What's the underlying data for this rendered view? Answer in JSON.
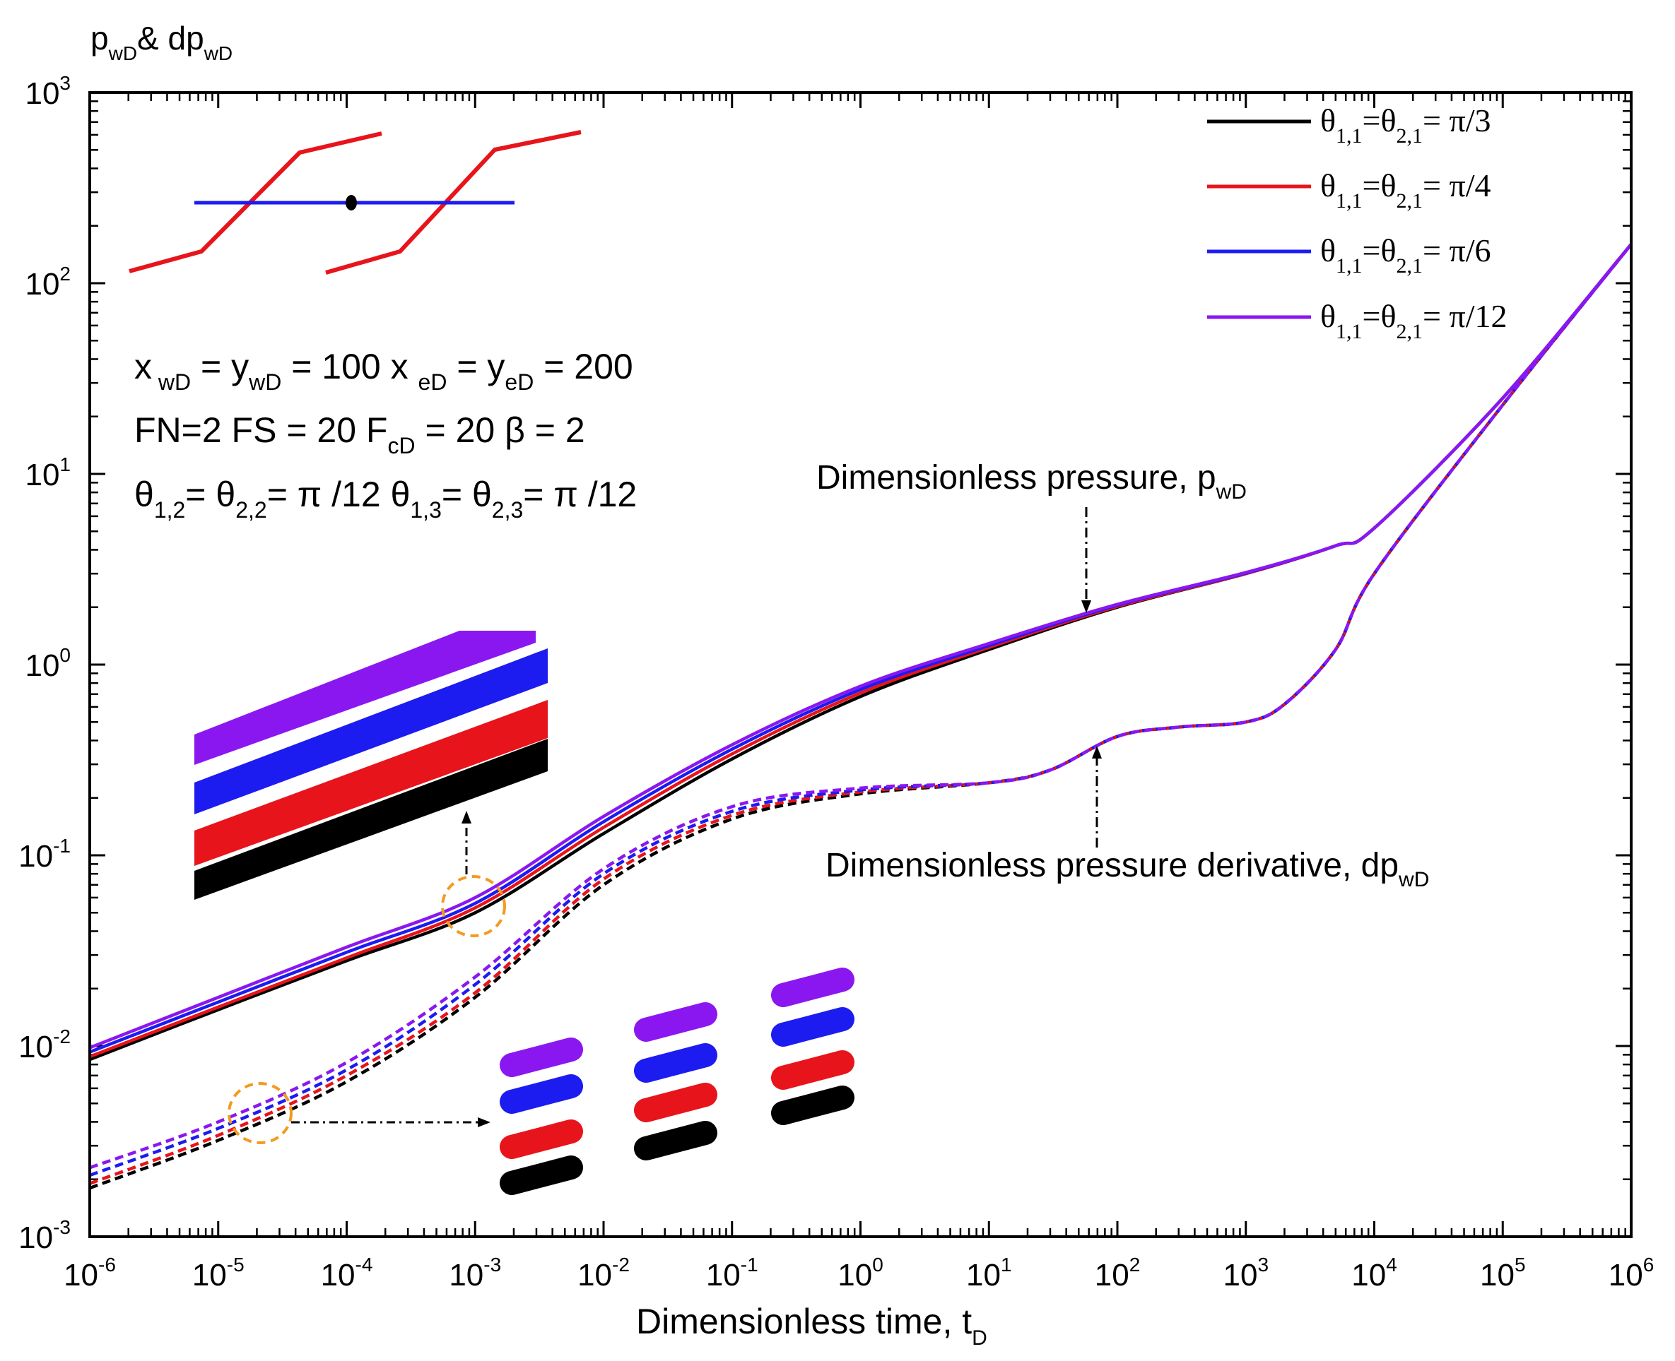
{
  "chart_data": {
    "type": "line",
    "xscale": "log",
    "yscale": "log",
    "xlim": [
      1e-06,
      1000000.0
    ],
    "ylim": [
      0.001,
      1000.0
    ],
    "y_title": {
      "base": "p",
      "sub": "wD",
      "mid": "& dp",
      "sub2": "wD"
    },
    "x_title": {
      "base": "Dimensionless time, t",
      "sub": "D"
    },
    "x_ticks": [
      {
        "value": 1e-06,
        "exp": "-6"
      },
      {
        "value": 1e-05,
        "exp": "-5"
      },
      {
        "value": 0.0001,
        "exp": "-4"
      },
      {
        "value": 0.001,
        "exp": "-3"
      },
      {
        "value": 0.01,
        "exp": "-2"
      },
      {
        "value": 0.1,
        "exp": "-1"
      },
      {
        "value": 1.0,
        "exp": "0"
      },
      {
        "value": 10.0,
        "exp": "1"
      },
      {
        "value": 100.0,
        "exp": "2"
      },
      {
        "value": 1000.0,
        "exp": "3"
      },
      {
        "value": 10000.0,
        "exp": "4"
      },
      {
        "value": 100000.0,
        "exp": "5"
      },
      {
        "value": 1000000.0,
        "exp": "6"
      }
    ],
    "y_ticks": [
      {
        "value": 0.001,
        "exp": "-3"
      },
      {
        "value": 0.01,
        "exp": "-2"
      },
      {
        "value": 0.1,
        "exp": "-1"
      },
      {
        "value": 1.0,
        "exp": "0"
      },
      {
        "value": 10.0,
        "exp": "1"
      },
      {
        "value": 100.0,
        "exp": "2"
      },
      {
        "value": 1000.0,
        "exp": "3"
      }
    ],
    "tick_base": "10",
    "legend_position": "top-right",
    "series": [
      {
        "name": "θ1,1=θ2,1= π/3",
        "legend": {
          "a": "θ",
          "s1": "1,1",
          "b": "=θ",
          "s2": "2,1",
          "c": "= π/3"
        },
        "color": "#000000",
        "pressure": [
          [
            1e-06,
            0.0085
          ],
          [
            1e-05,
            0.0155
          ],
          [
            0.0001,
            0.028
          ],
          [
            0.001,
            0.05
          ],
          [
            0.01,
            0.13
          ],
          [
            0.1,
            0.32
          ],
          [
            1,
            0.68
          ],
          [
            10,
            1.2
          ],
          [
            100,
            2.0
          ],
          [
            1000,
            3.0
          ],
          [
            5000,
            4.2
          ],
          [
            10000.0,
            5.2
          ],
          [
            100000.0,
            25
          ],
          [
            1000000.0,
            160
          ]
        ],
        "derivative": [
          [
            1e-06,
            0.0018
          ],
          [
            1e-05,
            0.0032
          ],
          [
            0.0001,
            0.0065
          ],
          [
            0.001,
            0.018
          ],
          [
            0.01,
            0.07
          ],
          [
            0.1,
            0.155
          ],
          [
            1,
            0.21
          ],
          [
            10,
            0.24
          ],
          [
            30,
            0.28
          ],
          [
            100,
            0.42
          ],
          [
            300,
            0.47
          ],
          [
            1000,
            0.5
          ],
          [
            2000,
            0.62
          ],
          [
            5000,
            1.2
          ],
          [
            10000.0,
            3.0
          ],
          [
            100000.0,
            23
          ],
          [
            1000000.0,
            160
          ]
        ]
      },
      {
        "name": "θ1,1=θ2,1= π/4",
        "legend": {
          "a": "θ",
          "s1": "1,1",
          "b": "=θ",
          "s2": "2,1",
          "c": "= π/4"
        },
        "color": "#e8141b",
        "pressure": [
          [
            1e-06,
            0.0088
          ],
          [
            1e-05,
            0.016
          ],
          [
            0.0001,
            0.029
          ],
          [
            0.001,
            0.053
          ],
          [
            0.01,
            0.14
          ],
          [
            0.1,
            0.34
          ],
          [
            1,
            0.71
          ],
          [
            10,
            1.23
          ],
          [
            100,
            2.02
          ],
          [
            1000,
            3.0
          ],
          [
            5000,
            4.2
          ],
          [
            10000.0,
            5.2
          ],
          [
            100000.0,
            25
          ],
          [
            1000000.0,
            160
          ]
        ],
        "derivative": [
          [
            1e-06,
            0.0019
          ],
          [
            1e-05,
            0.0034
          ],
          [
            0.0001,
            0.007
          ],
          [
            0.001,
            0.019
          ],
          [
            0.01,
            0.075
          ],
          [
            0.1,
            0.162
          ],
          [
            1,
            0.215
          ],
          [
            10,
            0.24
          ],
          [
            30,
            0.28
          ],
          [
            100,
            0.42
          ],
          [
            300,
            0.47
          ],
          [
            1000,
            0.5
          ],
          [
            2000,
            0.62
          ],
          [
            5000,
            1.2
          ],
          [
            10000.0,
            3.0
          ],
          [
            100000.0,
            23
          ],
          [
            1000000.0,
            160
          ]
        ]
      },
      {
        "name": "θ1,1=θ2,1= π/6",
        "legend": {
          "a": "θ",
          "s1": "1,1",
          "b": "=θ",
          "s2": "2,1",
          "c": "= π/6"
        },
        "color": "#1c1cf0",
        "pressure": [
          [
            1e-06,
            0.0093
          ],
          [
            1e-05,
            0.017
          ],
          [
            0.0001,
            0.031
          ],
          [
            0.001,
            0.056
          ],
          [
            0.01,
            0.15
          ],
          [
            0.1,
            0.36
          ],
          [
            1,
            0.74
          ],
          [
            10,
            1.26
          ],
          [
            100,
            2.05
          ],
          [
            1000,
            3.02
          ],
          [
            5000,
            4.2
          ],
          [
            10000.0,
            5.2
          ],
          [
            100000.0,
            25
          ],
          [
            1000000.0,
            160
          ]
        ],
        "derivative": [
          [
            1e-06,
            0.0021
          ],
          [
            1e-05,
            0.0037
          ],
          [
            0.0001,
            0.0075
          ],
          [
            0.001,
            0.021
          ],
          [
            0.01,
            0.08
          ],
          [
            0.1,
            0.17
          ],
          [
            1,
            0.22
          ],
          [
            10,
            0.24
          ],
          [
            30,
            0.28
          ],
          [
            100,
            0.42
          ],
          [
            300,
            0.47
          ],
          [
            1000,
            0.5
          ],
          [
            2000,
            0.62
          ],
          [
            5000,
            1.2
          ],
          [
            10000.0,
            3.0
          ],
          [
            100000.0,
            23
          ],
          [
            1000000.0,
            160
          ]
        ]
      },
      {
        "name": "θ1,1=θ2,1= π/12",
        "legend": {
          "a": "θ",
          "s1": "1,1",
          "b": "=θ",
          "s2": "2,1",
          "c": "= π/12"
        },
        "color": "#8b17f0",
        "pressure": [
          [
            1e-06,
            0.0098
          ],
          [
            1e-05,
            0.018
          ],
          [
            0.0001,
            0.033
          ],
          [
            0.001,
            0.06
          ],
          [
            0.01,
            0.16
          ],
          [
            0.1,
            0.38
          ],
          [
            1,
            0.77
          ],
          [
            10,
            1.29
          ],
          [
            100,
            2.07
          ],
          [
            1000,
            3.04
          ],
          [
            5000,
            4.2
          ],
          [
            10000.0,
            5.2
          ],
          [
            100000.0,
            25
          ],
          [
            1000000.0,
            160
          ]
        ],
        "derivative": [
          [
            1e-06,
            0.0023
          ],
          [
            1e-05,
            0.004
          ],
          [
            0.0001,
            0.0082
          ],
          [
            0.001,
            0.023
          ],
          [
            0.01,
            0.085
          ],
          [
            0.1,
            0.18
          ],
          [
            1,
            0.225
          ],
          [
            10,
            0.24
          ],
          [
            30,
            0.28
          ],
          [
            100,
            0.42
          ],
          [
            300,
            0.47
          ],
          [
            1000,
            0.5
          ],
          [
            2000,
            0.62
          ],
          [
            5000,
            1.2
          ],
          [
            10000.0,
            3.0
          ],
          [
            100000.0,
            23
          ],
          [
            1000000.0,
            160
          ]
        ]
      }
    ],
    "params": [
      [
        "x",
        {
          "sub": " wD"
        },
        " = y",
        {
          "sub": "wD"
        },
        " = 100   x ",
        {
          "sub": "eD"
        },
        " = y",
        {
          "sub": "eD"
        },
        " = 200"
      ],
      [
        "FN=2  FS = 20  F",
        {
          "sub": "cD"
        },
        " = 20  β = 2"
      ],
      [
        "θ",
        {
          "sub": "1,2"
        },
        "= θ",
        {
          "sub": "2,2"
        },
        "= π /12  θ",
        {
          "sub": "1,3"
        },
        "= θ",
        {
          "sub": "2,3"
        },
        "= π /12"
      ]
    ],
    "annotations": {
      "pressure": [
        "Dimensionless pressure, p",
        {
          "sub": "wD"
        }
      ],
      "derivative": [
        "Dimensionless pressure derivative, dp",
        {
          "sub": "wD"
        }
      ]
    }
  }
}
